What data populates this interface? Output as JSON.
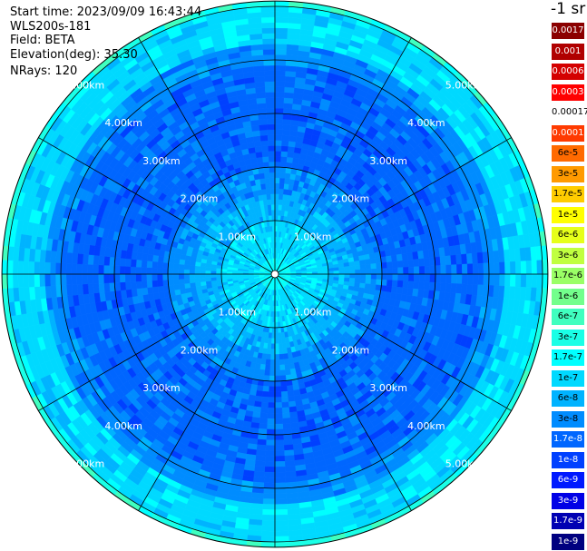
{
  "header": {
    "start_time": "Start time: 2023/09/09 16:43:44",
    "instrument": "WLS200s-181",
    "field": "Field: BETA",
    "elevation": "Elevation(deg): 35.30",
    "nrays": "NRays: 120"
  },
  "colorbar": {
    "units": "-1 sr",
    "levels": [
      {
        "label": "0.0017",
        "color": "#8b0000",
        "text": "#ffffff"
      },
      {
        "label": "0.001",
        "color": "#b00000",
        "text": "#ffffff"
      },
      {
        "label": "0.0006",
        "color": "#d40000",
        "text": "#ffffff"
      },
      {
        "label": "0.0003",
        "color": "#ff0000",
        "text": "#ffffff"
      },
      {
        "label": "0.00017",
        "color": "#ffffff",
        "text": "#000000"
      },
      {
        "label": "0.0001",
        "color": "#ff3a00",
        "text": "#ffffff"
      },
      {
        "label": "6e-5",
        "color": "#ff6a00",
        "text": "#000000"
      },
      {
        "label": "3e-5",
        "color": "#ff9a00",
        "text": "#000000"
      },
      {
        "label": "1.7e-5",
        "color": "#ffcc00",
        "text": "#000000"
      },
      {
        "label": "1e-5",
        "color": "#ffff00",
        "text": "#000000"
      },
      {
        "label": "6e-6",
        "color": "#e6ff1a",
        "text": "#000000"
      },
      {
        "label": "3e-6",
        "color": "#c0ff40",
        "text": "#000000"
      },
      {
        "label": "1.7e-6",
        "color": "#9aff66",
        "text": "#000000"
      },
      {
        "label": "1e-6",
        "color": "#73ff8c",
        "text": "#000000"
      },
      {
        "label": "6e-7",
        "color": "#40ffbf",
        "text": "#000000"
      },
      {
        "label": "3e-7",
        "color": "#1affe6",
        "text": "#000000"
      },
      {
        "label": "1.7e-7",
        "color": "#00ffff",
        "text": "#000000"
      },
      {
        "label": "1e-7",
        "color": "#00d9ff",
        "text": "#000000"
      },
      {
        "label": "6e-8",
        "color": "#00b3ff",
        "text": "#000000"
      },
      {
        "label": "3e-8",
        "color": "#008cff",
        "text": "#000000"
      },
      {
        "label": "1.7e-8",
        "color": "#0066ff",
        "text": "#ffffff"
      },
      {
        "label": "1e-8",
        "color": "#0040ff",
        "text": "#ffffff"
      },
      {
        "label": "6e-9",
        "color": "#0019ff",
        "text": "#ffffff"
      },
      {
        "label": "3e-9",
        "color": "#0000e6",
        "text": "#ffffff"
      },
      {
        "label": "1.7e-9",
        "color": "#0000b3",
        "text": "#ffffff"
      },
      {
        "label": "1e-9",
        "color": "#000080",
        "text": "#ffffff"
      }
    ]
  },
  "chart_data": {
    "type": "heatmap",
    "projection": "polar PPI",
    "n_rays": 120,
    "range_rings_km": [
      1,
      2,
      3,
      4,
      5
    ],
    "ring_labels": [
      "1.00km",
      "2.00km",
      "3.00km",
      "4.00km",
      "5.00km"
    ],
    "spokes_deg": [
      0,
      30,
      60,
      90,
      120,
      150,
      180,
      210,
      240,
      270,
      300,
      330
    ],
    "range_bands": [
      {
        "from_km": 0.0,
        "to_km": 0.3,
        "value": "1.7e-7"
      },
      {
        "from_km": 0.3,
        "to_km": 1.0,
        "value": "1e-7"
      },
      {
        "from_km": 1.0,
        "to_km": 1.5,
        "value": "6e-8"
      },
      {
        "from_km": 1.5,
        "to_km": 2.0,
        "value": "3e-8"
      },
      {
        "from_km": 2.0,
        "to_km": 3.9,
        "value": "1.7e-8"
      },
      {
        "from_km": 3.9,
        "to_km": 4.3,
        "value": "3e-8"
      },
      {
        "from_km": 4.3,
        "to_km": 5.0,
        "value": "1e-7"
      },
      {
        "from_km": 5.0,
        "to_km": 5.1,
        "value": "3e-7"
      }
    ],
    "colors": {
      "ring": "#000000",
      "background": "#ffffff"
    }
  }
}
